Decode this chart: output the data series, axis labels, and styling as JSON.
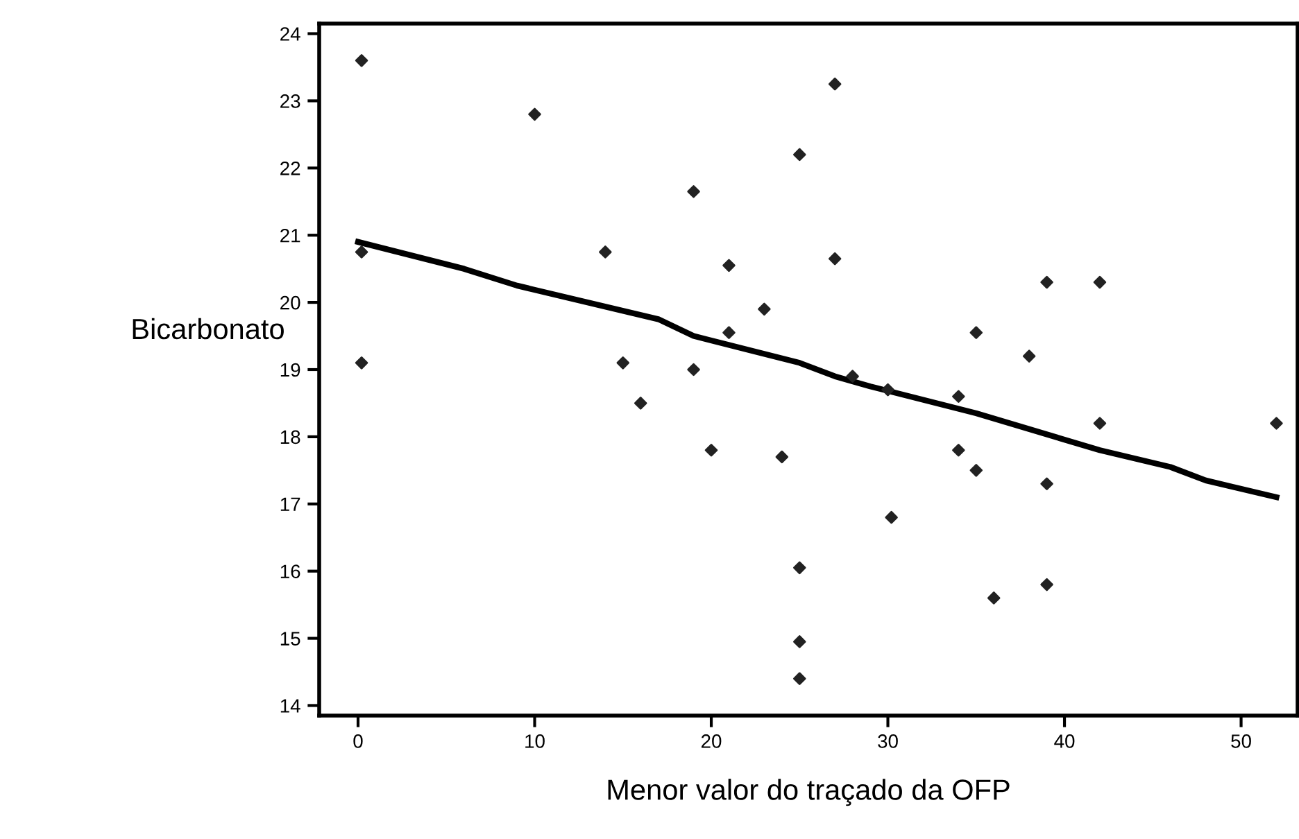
{
  "chart_data": {
    "type": "scatter",
    "xlabel": "Menor valor do traçado da OFP",
    "ylabel": "Bicarbonato",
    "xlim": [
      -2.2,
      53.2
    ],
    "ylim": [
      13.85,
      24.15
    ],
    "xticks": [
      0,
      10,
      20,
      30,
      40,
      50
    ],
    "yticks": [
      14,
      15,
      16,
      17,
      18,
      19,
      20,
      21,
      22,
      23,
      24
    ],
    "grid": false,
    "legend": false,
    "series": [
      {
        "color": "#222222",
        "marker": "diamond",
        "x": [
          0.2,
          0.2,
          0.2,
          10,
          14,
          15,
          16,
          19,
          19,
          20,
          21,
          21,
          23,
          24,
          25,
          25,
          25,
          25,
          27,
          27,
          28,
          30,
          30.2,
          34,
          34,
          35,
          35,
          36,
          38,
          39,
          39,
          39,
          42,
          42,
          52
        ],
        "values": [
          23.6,
          20.75,
          19.1,
          22.8,
          20.75,
          19.1,
          18.5,
          21.65,
          19.0,
          17.8,
          20.55,
          19.55,
          19.9,
          17.7,
          22.2,
          16.05,
          14.95,
          14.4,
          23.25,
          20.65,
          18.9,
          18.7,
          16.8,
          18.6,
          17.8,
          19.55,
          17.5,
          15.6,
          19.2,
          20.3,
          17.3,
          15.8,
          20.3,
          18.2,
          18.2
        ]
      },
      {
        "type": "line",
        "color": "#000000",
        "marker": "none",
        "line_style": "solid",
        "x": [
          0,
          6,
          9,
          17,
          19,
          25,
          27,
          29,
          35,
          42,
          46,
          48,
          52
        ],
        "values": [
          20.9,
          20.5,
          20.25,
          19.75,
          19.5,
          19.1,
          18.9,
          18.75,
          18.35,
          17.8,
          17.55,
          17.35,
          17.1
        ]
      }
    ]
  }
}
